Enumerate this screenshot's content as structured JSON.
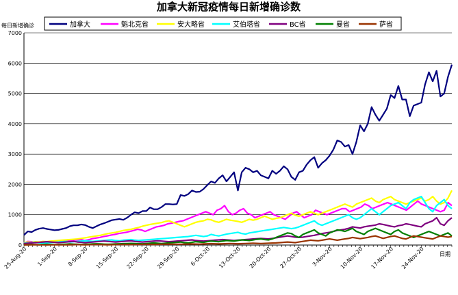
{
  "chart_data": {
    "type": "line",
    "title": "加拿大新冠疫情每日新增确诊数",
    "ylabel": "每日新增确诊",
    "xlabel": "日期",
    "ylim": [
      0,
      7000
    ],
    "yticks": [
      0,
      1000,
      2000,
      3000,
      4000,
      5000,
      6000,
      7000
    ],
    "x_tick_labels": [
      "25-Aug-20",
      "1-Sep-20",
      "8-Sep-20",
      "15-Sep-20",
      "22-Sep-20",
      "29-Sep-20",
      "6-Oct-20",
      "13-Oct-20",
      "20-Oct-20",
      "27-Oct-20",
      "3-Nov-20",
      "10-Nov-20",
      "17-Nov-20",
      "24-Nov-20"
    ],
    "x_tick_days": [
      0,
      7,
      14,
      21,
      28,
      35,
      42,
      49,
      56,
      63,
      70,
      77,
      84,
      91
    ],
    "x_range_days": [
      0,
      98
    ],
    "grid": "horizontal",
    "legend_position": "top",
    "series": [
      {
        "name": "加拿大",
        "color": "#00007f",
        "width": 2.2,
        "values": [
          330,
          450,
          430,
          500,
          540,
          560,
          530,
          510,
          490,
          500,
          530,
          560,
          620,
          650,
          650,
          680,
          660,
          600,
          560,
          620,
          680,
          720,
          770,
          820,
          840,
          860,
          830,
          900,
          1000,
          1080,
          1050,
          1120,
          1120,
          1240,
          1180,
          1180,
          1250,
          1350,
          1350,
          1340,
          1350,
          1650,
          1620,
          1680,
          1800,
          1750,
          1760,
          1850,
          1980,
          2100,
          2050,
          2200,
          2300,
          2100,
          2250,
          2400,
          1800,
          2400,
          2550,
          2500,
          2400,
          2450,
          2300,
          2250,
          2200,
          2450,
          2350,
          2450,
          2600,
          2500,
          2250,
          2150,
          2400,
          2450,
          2650,
          2800,
          2900,
          2550,
          2700,
          2800,
          2950,
          3150,
          3450,
          3400,
          3250,
          3300,
          3000,
          3400,
          3950,
          3750,
          4000,
          4550,
          4300,
          4100,
          4300,
          4500,
          4950,
          4850,
          5250,
          4800,
          4800,
          4250,
          4600,
          4650,
          4700,
          5300,
          5700,
          5400,
          5750,
          4900,
          5000,
          5550,
          5950
        ]
      },
      {
        "name": "魁北克省",
        "color": "#ff00ff",
        "width": 2.2,
        "values": [
          60,
          120,
          110,
          80,
          80,
          100,
          90,
          100,
          120,
          140,
          130,
          140,
          150,
          160,
          170,
          180,
          150,
          170,
          210,
          230,
          250,
          280,
          300,
          330,
          350,
          380,
          400,
          420,
          450,
          480,
          520,
          500,
          450,
          500,
          550,
          600,
          620,
          650,
          700,
          720,
          750,
          780,
          800,
          850,
          900,
          950,
          1000,
          1050,
          1100,
          1050,
          1000,
          1150,
          1200,
          1300,
          1100,
          1000,
          1050,
          1150,
          1200,
          1050,
          1000,
          900,
          950,
          1000,
          1050,
          1100,
          1000,
          950,
          900,
          850,
          950,
          1050,
          1100,
          1000,
          900,
          950,
          1000,
          1150,
          1100,
          1050,
          1000,
          1050,
          1100,
          1150,
          1200,
          1200,
          1100,
          1150,
          1200,
          1250,
          1350,
          1300,
          1200,
          1250,
          1300,
          1350,
          1400,
          1350,
          1300,
          1250,
          1200,
          1150,
          1250,
          1350,
          1450,
          1350,
          1300,
          1250,
          1200,
          1150,
          1100,
          1150,
          1400,
          1300
        ]
      },
      {
        "name": "安大略省",
        "color": "#ffff00",
        "width": 2.2,
        "values": [
          80,
          100,
          90,
          110,
          100,
          120,
          110,
          130,
          140,
          150,
          160,
          170,
          180,
          190,
          200,
          220,
          240,
          260,
          280,
          300,
          320,
          350,
          380,
          400,
          420,
          450,
          480,
          500,
          520,
          550,
          580,
          620,
          650,
          680,
          700,
          720,
          740,
          780,
          800,
          750,
          700,
          650,
          600,
          650,
          700,
          750,
          780,
          800,
          850,
          830,
          780,
          750,
          800,
          850,
          820,
          800,
          780,
          750,
          800,
          850,
          820,
          850,
          900,
          950,
          900,
          850,
          880,
          900,
          950,
          1000,
          1050,
          980,
          950,
          1000,
          1050,
          1100,
          1050,
          1000,
          1050,
          1100,
          1150,
          1200,
          1250,
          1300,
          1350,
          1300,
          1250,
          1350,
          1400,
          1450,
          1500,
          1550,
          1450,
          1400,
          1500,
          1550,
          1600,
          1500,
          1450,
          1400,
          1350,
          1400,
          1450,
          1500,
          1550,
          1450,
          1500,
          1600,
          1450,
          1350,
          1400,
          1550,
          1800
        ]
      },
      {
        "name": "艾伯塔省",
        "color": "#00ffff",
        "width": 2.2,
        "values": [
          60,
          70,
          80,
          90,
          70,
          60,
          70,
          80,
          90,
          100,
          110,
          120,
          100,
          110,
          120,
          130,
          140,
          130,
          120,
          130,
          140,
          150,
          160,
          170,
          150,
          140,
          160,
          170,
          180,
          160,
          150,
          160,
          170,
          180,
          190,
          200,
          210,
          220,
          230,
          240,
          250,
          260,
          270,
          280,
          300,
          320,
          300,
          280,
          300,
          350,
          320,
          300,
          330,
          360,
          380,
          400,
          420,
          380,
          360,
          400,
          420,
          440,
          460,
          480,
          500,
          520,
          540,
          560,
          580,
          560,
          540,
          560,
          600,
          650,
          700,
          750,
          800,
          700,
          650,
          700,
          750,
          800,
          850,
          900,
          950,
          1000,
          900,
          850,
          900,
          1000,
          1100,
          1200,
          1100,
          1000,
          1100,
          1200,
          1300,
          1350,
          1400,
          1300,
          1200,
          1400,
          1500,
          1550,
          1600,
          1400,
          1200,
          1100,
          1300,
          1400,
          1500,
          1300,
          1200
        ]
      },
      {
        "name": "BC省",
        "color": "#7f007f",
        "width": 2.2,
        "values": [
          50,
          60,
          70,
          80,
          90,
          100,
          110,
          100,
          90,
          80,
          90,
          100,
          110,
          120,
          100,
          90,
          80,
          90,
          100,
          110,
          120,
          130,
          120,
          110,
          100,
          110,
          120,
          130,
          140,
          120,
          110,
          100,
          110,
          120,
          130,
          140,
          130,
          120,
          110,
          120,
          130,
          140,
          150,
          160,
          170,
          150,
          140,
          130,
          140,
          150,
          160,
          170,
          180,
          170,
          160,
          150,
          160,
          170,
          180,
          190,
          200,
          210,
          220,
          210,
          200,
          220,
          240,
          260,
          280,
          300,
          280,
          260,
          250,
          260,
          280,
          300,
          320,
          350,
          380,
          400,
          420,
          450,
          480,
          500,
          520,
          550,
          600,
          580,
          560,
          600,
          620,
          640,
          660,
          700,
          680,
          650,
          620,
          600,
          640,
          660,
          700,
          680,
          650,
          620,
          600,
          700,
          750,
          800,
          900,
          700,
          650,
          800,
          900
        ]
      },
      {
        "name": "曼省",
        "color": "#007f00",
        "width": 2.2,
        "values": [
          10,
          15,
          20,
          15,
          10,
          20,
          25,
          20,
          15,
          20,
          25,
          30,
          35,
          30,
          25,
          20,
          25,
          30,
          35,
          40,
          35,
          30,
          25,
          30,
          35,
          40,
          45,
          50,
          55,
          50,
          45,
          40,
          50,
          60,
          70,
          60,
          50,
          60,
          70,
          80,
          90,
          100,
          80,
          70,
          90,
          110,
          100,
          90,
          110,
          130,
          120,
          110,
          130,
          150,
          140,
          130,
          150,
          170,
          160,
          150,
          170,
          190,
          200,
          180,
          170,
          200,
          250,
          300,
          350,
          400,
          380,
          300,
          250,
          350,
          400,
          450,
          500,
          400,
          350,
          300,
          400,
          450,
          500,
          480,
          450,
          500,
          550,
          450,
          400,
          350,
          450,
          500,
          550,
          500,
          450,
          400,
          350,
          450,
          500,
          400,
          350,
          300,
          250,
          300,
          350,
          400,
          450,
          400,
          350,
          300,
          350,
          400,
          300
        ]
      },
      {
        "name": "萨省",
        "color": "#993300",
        "width": 2.2,
        "values": [
          5,
          5,
          8,
          10,
          8,
          6,
          5,
          8,
          10,
          12,
          10,
          8,
          10,
          12,
          15,
          12,
          10,
          12,
          15,
          18,
          15,
          12,
          10,
          12,
          15,
          18,
          20,
          18,
          15,
          18,
          20,
          22,
          25,
          22,
          20,
          22,
          25,
          28,
          30,
          28,
          25,
          28,
          30,
          32,
          35,
          32,
          30,
          35,
          40,
          45,
          40,
          35,
          40,
          45,
          50,
          45,
          40,
          45,
          50,
          55,
          60,
          55,
          50,
          55,
          60,
          65,
          70,
          80,
          90,
          100,
          90,
          80,
          100,
          120,
          140,
          160,
          150,
          140,
          160,
          180,
          200,
          180,
          160,
          180,
          200,
          220,
          250,
          230,
          210,
          230,
          250,
          280,
          300,
          260,
          220,
          250,
          280,
          300,
          260,
          220,
          200,
          250,
          300,
          280,
          260,
          240,
          220,
          200,
          250,
          300,
          280,
          260,
          280
        ]
      }
    ]
  }
}
